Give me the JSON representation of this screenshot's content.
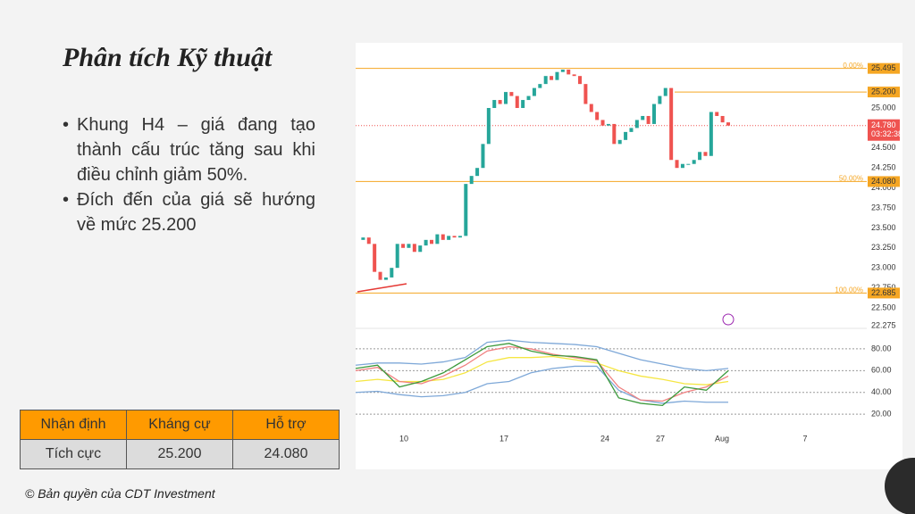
{
  "header": {
    "title": "Phân tích Kỹ thuật"
  },
  "bullets": [
    "Khung H4 – giá đang tạo thành cấu trúc tăng sau khi điều chỉnh giảm 50%.",
    "Đích đến của giá sẽ hướng về mức 25.200"
  ],
  "table": {
    "header": [
      "Nhận định",
      "Kháng cự",
      "Hỗ trợ"
    ],
    "rows": [
      [
        "Tích cực",
        "25.200",
        "24.080"
      ]
    ]
  },
  "footer": "© Bản quyền của CDT Investment",
  "chart_data": [
    {
      "type": "candlestick",
      "ylim": [
        22.243,
        25.815
      ],
      "yticks": [
        {
          "value": 22.275,
          "label": "22.275"
        },
        {
          "value": 22.5,
          "label": "22.500"
        },
        {
          "value": 22.75,
          "label": "22.750"
        },
        {
          "value": 23,
          "label": "23.000"
        },
        {
          "value": 23.25,
          "label": "23.250"
        },
        {
          "value": 23.5,
          "label": "23.500"
        },
        {
          "value": 23.75,
          "label": "23.750"
        },
        {
          "value": 24,
          "label": "24.000"
        },
        {
          "value": 24.25,
          "label": "24.250"
        },
        {
          "value": 24.5,
          "label": "24.500"
        },
        {
          "value": 24.75,
          "label": "24.750"
        },
        {
          "value": 25,
          "label": "25.000"
        }
      ],
      "close": [
        23.35,
        23.38,
        23.3,
        22.95,
        22.85,
        22.88,
        23.0,
        23.3,
        23.25,
        23.3,
        23.2,
        23.28,
        23.35,
        23.3,
        23.42,
        23.35,
        23.4,
        23.38,
        23.4,
        24.05,
        24.15,
        24.25,
        24.55,
        25.0,
        25.1,
        25.05,
        25.2,
        25.15,
        25.0,
        25.1,
        25.15,
        25.25,
        25.3,
        25.4,
        25.35,
        25.45,
        25.48,
        25.42,
        25.4,
        25.3,
        25.05,
        24.95,
        24.85,
        24.78,
        24.8,
        24.55,
        24.6,
        24.7,
        24.75,
        24.85,
        24.9,
        24.8,
        25.05,
        25.15,
        25.25,
        24.35,
        24.25,
        24.3,
        24.3,
        24.35,
        24.45,
        24.4,
        24.95,
        24.9,
        24.82,
        24.78
      ],
      "levels": [
        {
          "value": 25.495,
          "label": "25.495",
          "pct": "0.00%"
        },
        {
          "value": 25.2,
          "label": "25.200"
        },
        {
          "value": 24.08,
          "label": "24.080",
          "pct": "50.00%"
        },
        {
          "value": 22.685,
          "label": "22.685",
          "pct": "100.00%"
        }
      ],
      "current": {
        "value": 24.78,
        "label": "24.780",
        "timer": "03:32:38"
      },
      "x_labels": [
        "10",
        "17",
        "24",
        "27",
        "Aug",
        "7"
      ]
    },
    {
      "type": "line",
      "ylim": [
        7,
        98.8
      ],
      "yticks": [
        {
          "value": 20,
          "label": "20.00"
        },
        {
          "value": 40,
          "label": "40.00"
        },
        {
          "value": 60,
          "label": "60.00"
        },
        {
          "value": 80,
          "label": "80.00"
        }
      ],
      "series": [
        {
          "color": "#7ea8d8",
          "values": [
            65,
            67,
            67,
            66,
            68,
            72,
            86,
            88,
            86,
            85,
            84,
            82,
            76,
            70,
            66,
            62,
            60,
            62
          ]
        },
        {
          "color": "#7ea8d8",
          "values": [
            40,
            41,
            38,
            36,
            37,
            40,
            48,
            50,
            58,
            62,
            64,
            64,
            42,
            33,
            30,
            32,
            31,
            31
          ]
        },
        {
          "color": "#f5e642",
          "values": [
            50,
            52,
            50,
            50,
            52,
            58,
            68,
            72,
            72,
            73,
            70,
            67,
            60,
            55,
            52,
            48,
            47,
            50
          ]
        },
        {
          "color": "#f08080",
          "values": [
            60,
            63,
            50,
            48,
            55,
            65,
            78,
            82,
            80,
            75,
            72,
            69,
            45,
            33,
            32,
            40,
            45,
            55
          ]
        },
        {
          "color": "#3c9a3c",
          "values": [
            62,
            65,
            45,
            50,
            58,
            70,
            82,
            85,
            78,
            74,
            73,
            70,
            35,
            30,
            28,
            45,
            42,
            60
          ]
        }
      ]
    }
  ]
}
